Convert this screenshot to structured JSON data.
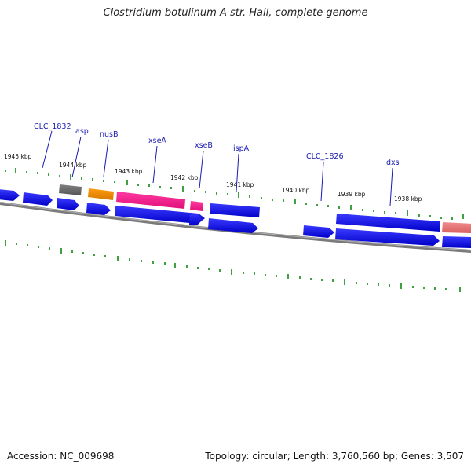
{
  "title": "Clostridium botulinum A str. Hall, complete genome",
  "accession": "Accession: NC_009698",
  "summary": "Topology: circular; Length: 3,760,560 bp; Genes: 3,507",
  "colors": {
    "cds": "#0000e0",
    "pink": "#ff1d8e",
    "orange": "#f08a00",
    "gray": "#6e6e6e",
    "salmon": "#e87878",
    "tick": "#118811",
    "backbone": "#7a7a7a",
    "label": "#1a1ab4"
  },
  "scale_labels": [
    "1945 kbp",
    "1944 kbp",
    "1943 kbp",
    "1942 kbp",
    "1941 kbp",
    "1940 kbp",
    "1939 kbp",
    "1938 kbp"
  ],
  "gene_labels": [
    "CLC_1832",
    "asp",
    "nusB",
    "xseA",
    "xseB",
    "ispA",
    "CLC_1826",
    "dxs"
  ]
}
